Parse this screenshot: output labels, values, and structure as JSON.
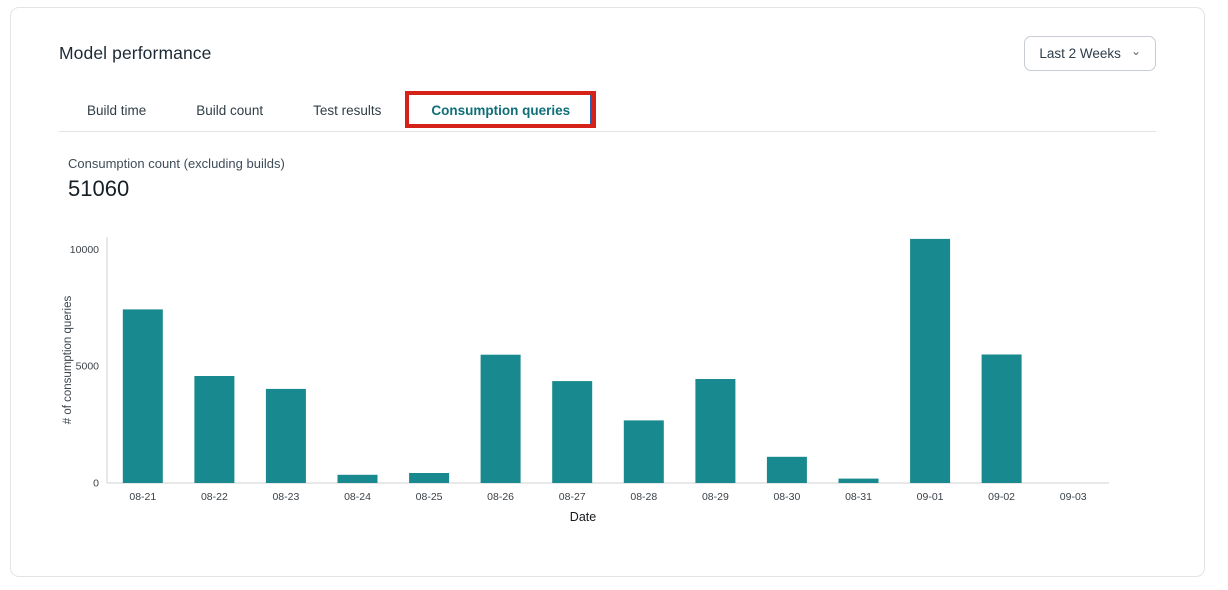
{
  "header": {
    "title": "Model performance",
    "date_range": {
      "value": "Last 2 Weeks"
    }
  },
  "icons": {
    "chevron_down": "⌄"
  },
  "tabs": {
    "items": [
      {
        "label": "Build time",
        "active": false
      },
      {
        "label": "Build count",
        "active": false
      },
      {
        "label": "Test results",
        "active": false
      },
      {
        "label": "Consumption queries",
        "active": true
      }
    ],
    "annotation": {
      "type": "highlight-box",
      "border_color": "#D6231A",
      "inner_edge_color": "#2B5FAD"
    }
  },
  "metric": {
    "label": "Consumption count (excluding builds)",
    "value": "51060"
  },
  "chart_data": {
    "type": "bar",
    "title": "",
    "categories": [
      "08-21",
      "08-22",
      "08-23",
      "08-24",
      "08-25",
      "08-26",
      "08-27",
      "08-28",
      "08-29",
      "08-30",
      "08-31",
      "09-01",
      "09-02",
      "09-03"
    ],
    "values": [
      7430,
      4580,
      4030,
      350,
      430,
      5490,
      4360,
      2680,
      4450,
      1120,
      190,
      10450,
      5500,
      0
    ],
    "total": 51060,
    "xlabel": "Date",
    "ylabel": "# of consumption queries",
    "yticks": [
      0,
      5000,
      10000
    ],
    "ylim": [
      0,
      10530
    ],
    "grid": false,
    "legend": "none",
    "bar_color": "#17898F",
    "axis_color": "#D9D9DB",
    "tick_color": "#3B4248",
    "label_color": "#15191C"
  }
}
